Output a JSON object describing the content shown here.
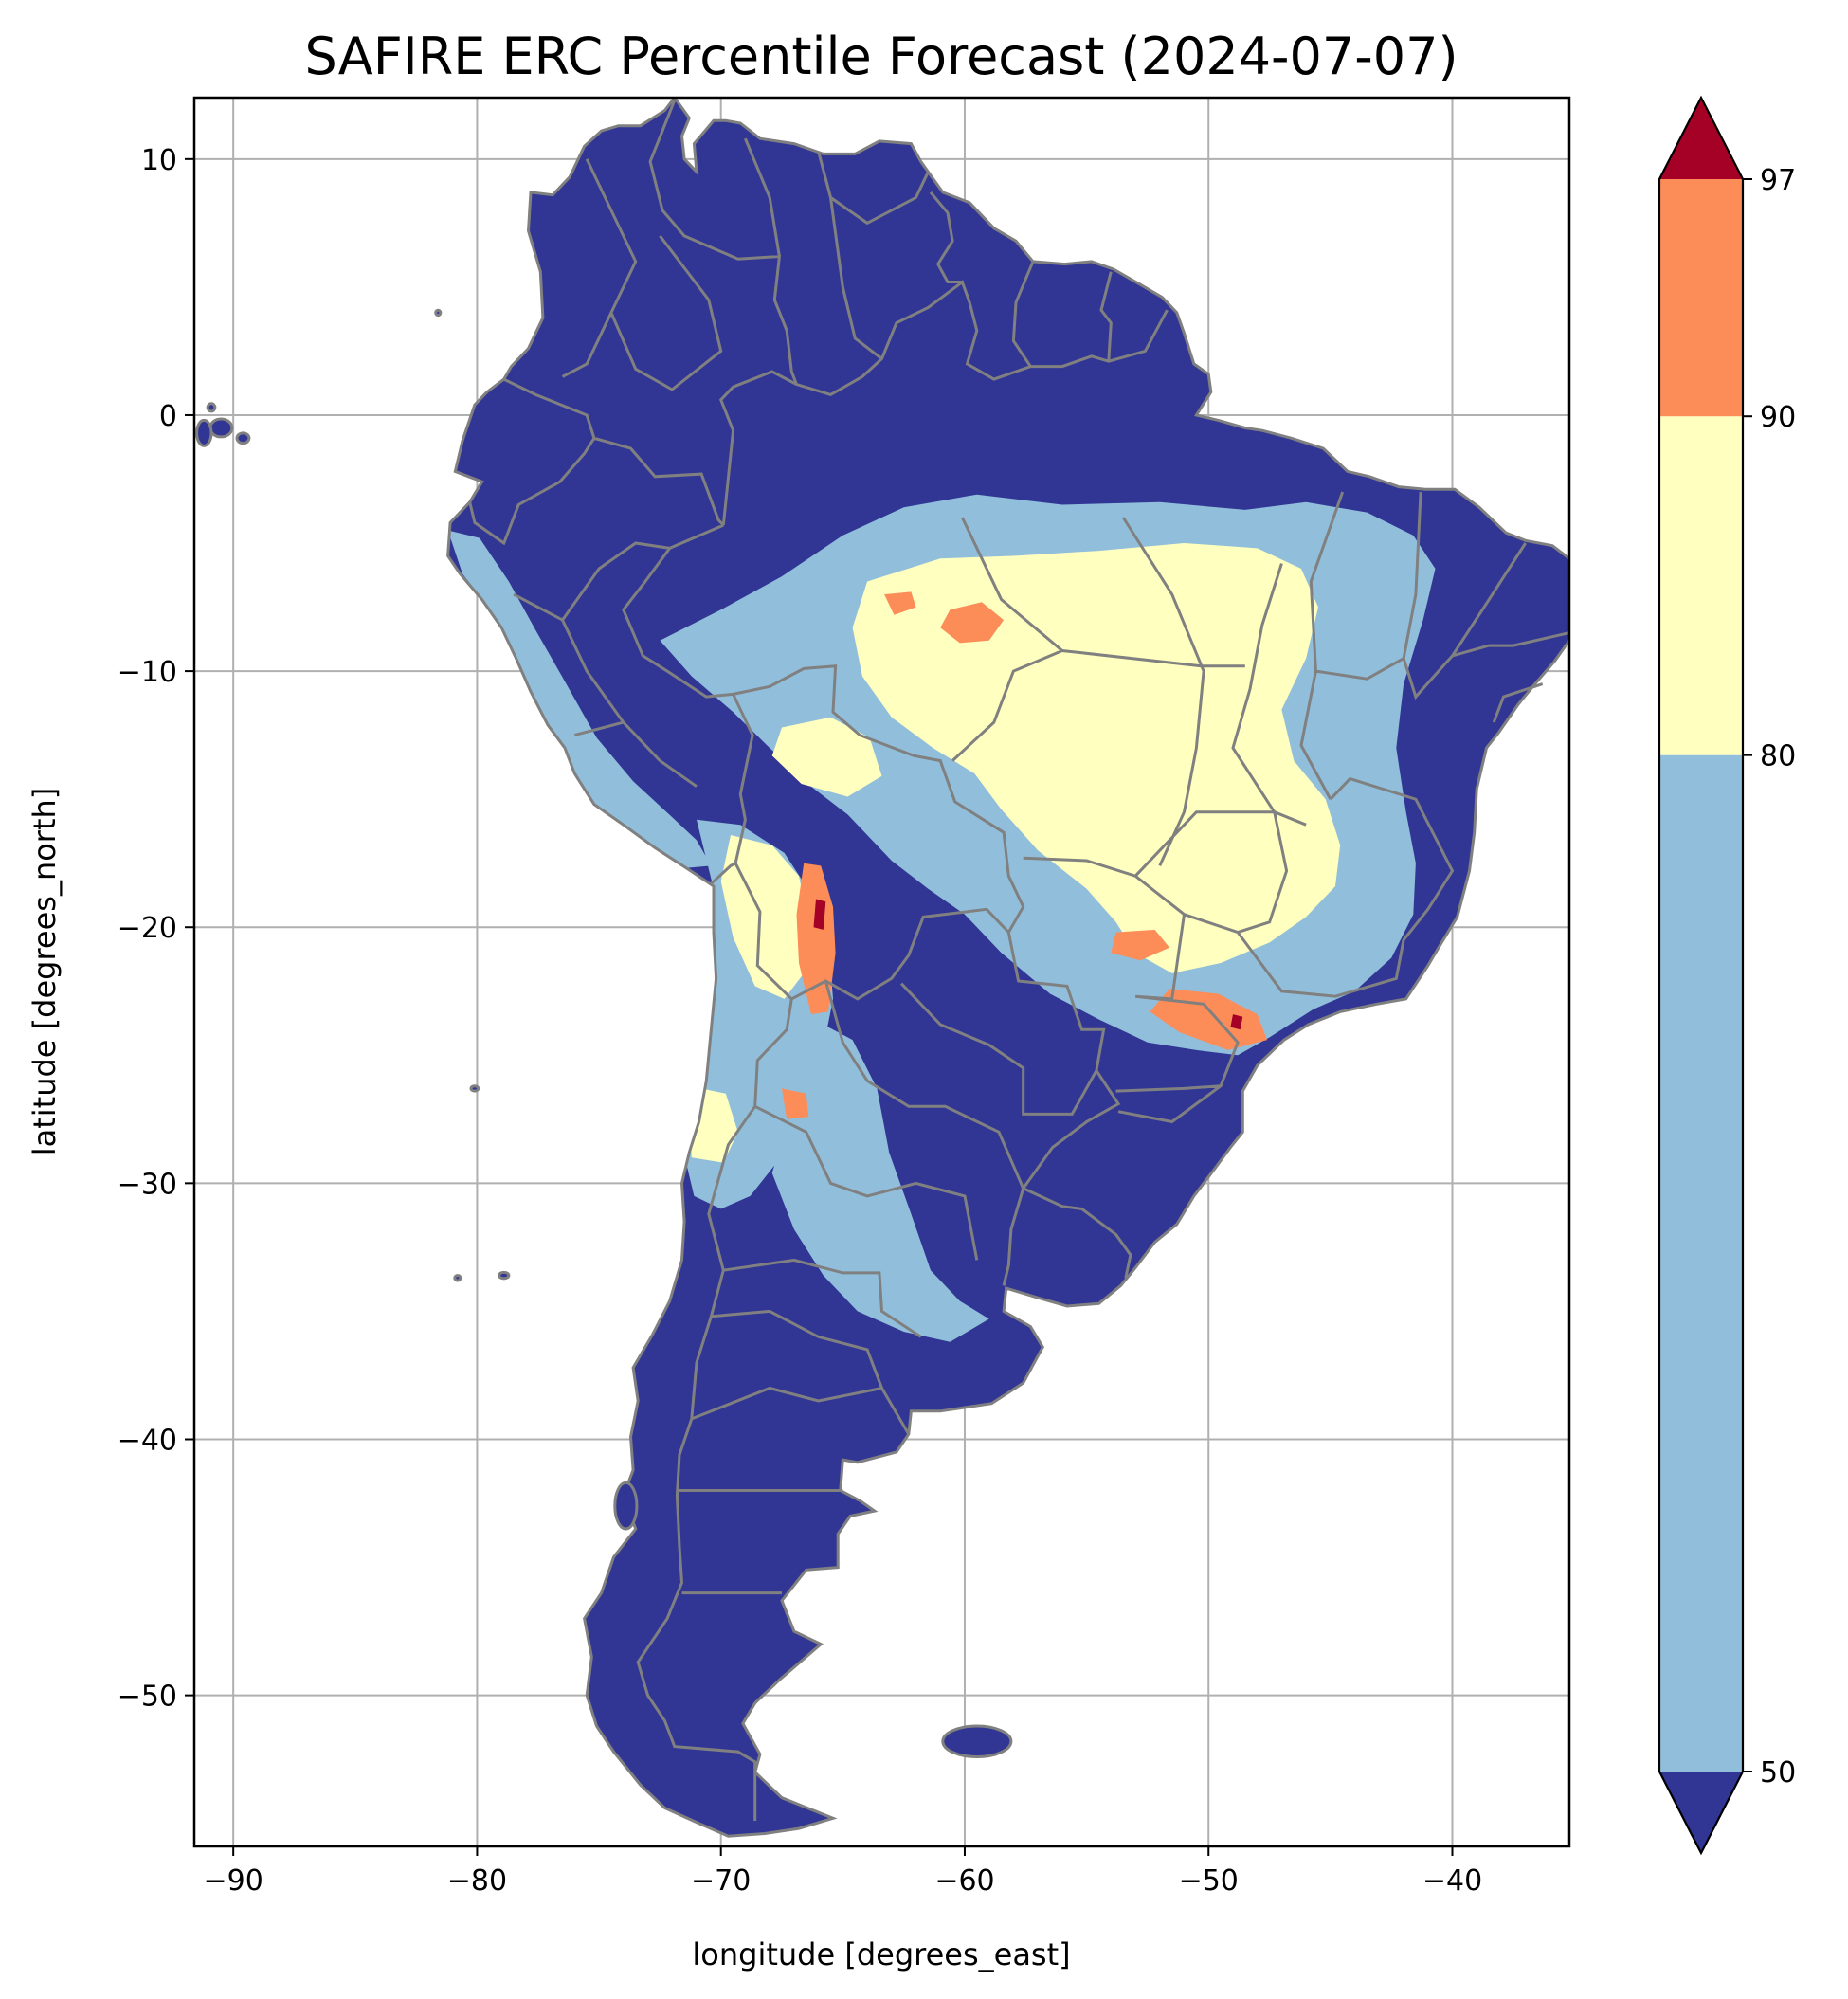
{
  "figure": {
    "title": "SAFIRE ERC Percentile Forecast (2024-07-07)",
    "xlabel": "longitude [degrees_east]",
    "ylabel": "latitude [degrees_north]",
    "xlim": [
      -91.6,
      -35.2
    ],
    "ylim": [
      -55.9,
      12.4
    ],
    "x_ticks": [
      -90,
      -80,
      -70,
      -60,
      -50,
      -40
    ],
    "y_ticks": [
      10,
      0,
      -10,
      -20,
      -30,
      -40,
      -50
    ],
    "x_tick_labels": [
      "−90",
      "−80",
      "−70",
      "−60",
      "−50",
      "−40"
    ],
    "y_tick_labels": [
      "10",
      "0",
      "−10",
      "−20",
      "−30",
      "−40",
      "−50"
    ],
    "grid": true
  },
  "colorbar": {
    "boundaries": [
      50,
      80,
      90,
      97
    ],
    "tick_labels": [
      "50",
      "80",
      "90",
      "97"
    ],
    "colors": {
      "under": "#313695",
      "band_50_80": "#91bfdb",
      "band_80_90": "#ffffbf",
      "band_90_97": "#fc8d59",
      "over": "#a50026"
    },
    "extend": "both"
  },
  "map": {
    "land_outline_color": "#808080",
    "grid_color": "#b0b0b0"
  }
}
